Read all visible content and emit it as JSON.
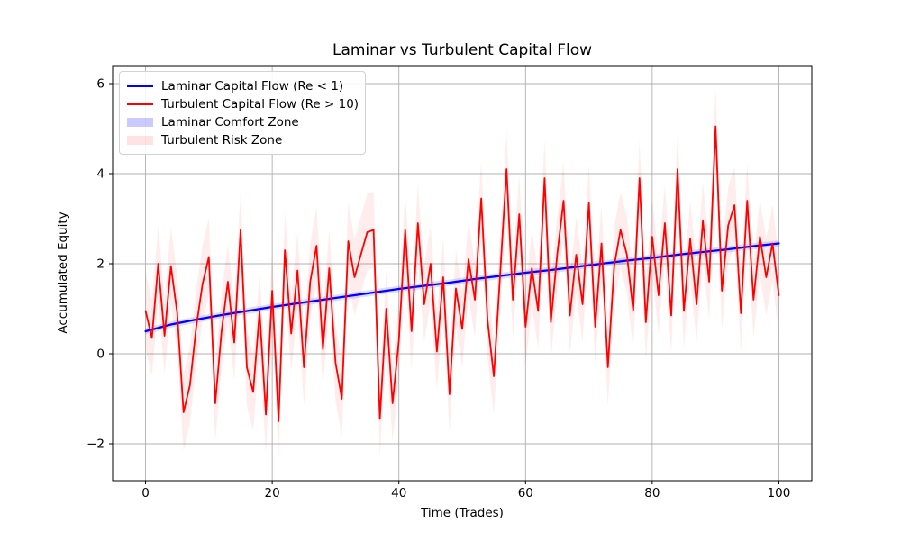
{
  "chart_data": {
    "type": "line",
    "title": "Laminar vs Turbulent Capital Flow",
    "xlabel": "Time (Trades)",
    "ylabel": "Accumulated Equity",
    "xlim": [
      -5.2,
      105.2
    ],
    "ylim": [
      -2.82,
      6.4
    ],
    "xticks": [
      0,
      20,
      40,
      60,
      80,
      100
    ],
    "x_tick_labels": [
      "0",
      "20",
      "40",
      "60",
      "80",
      "100"
    ],
    "yticks": [
      -2,
      0,
      2,
      4,
      6
    ],
    "y_tick_labels": [
      "−2",
      "0",
      "2",
      "4",
      "6"
    ],
    "grid": true,
    "grid_color": "#b0b0b0",
    "legend_position": "upper left",
    "series": [
      {
        "name": "Laminar Capital Flow (Re < 1)",
        "color": "#0000ff",
        "x_start": 0,
        "x_step": 4,
        "values": [
          0.5,
          0.65,
          0.76,
          0.86,
          0.95,
          1.04,
          1.12,
          1.2,
          1.28,
          1.36,
          1.44,
          1.51,
          1.58,
          1.66,
          1.73,
          1.8,
          1.86,
          1.93,
          2.0,
          2.07,
          2.13,
          2.2,
          2.26,
          2.32,
          2.39,
          2.45
        ],
        "band": {
          "label": "Laminar Comfort Zone",
          "halfwidth": 0.07,
          "color": "#0000ff",
          "opacity": 0.13
        }
      },
      {
        "name": "Turbulent Capital Flow (Re > 10)",
        "color": "#ff0000",
        "x_start": 0,
        "x_step": 1,
        "values": [
          0.95,
          0.35,
          2.0,
          0.4,
          1.95,
          0.9,
          -1.3,
          -0.7,
          0.6,
          1.55,
          2.15,
          -1.1,
          0.5,
          1.6,
          0.25,
          2.75,
          -0.3,
          -0.85,
          0.95,
          -1.35,
          1.4,
          -1.5,
          2.3,
          0.45,
          1.85,
          -0.3,
          1.6,
          2.4,
          0.1,
          1.9,
          -0.2,
          -1.0,
          2.5,
          1.7,
          2.2,
          2.7,
          2.75,
          -1.45,
          1.0,
          -1.1,
          0.3,
          2.75,
          0.5,
          2.9,
          1.1,
          2.0,
          0.05,
          1.7,
          -0.9,
          1.45,
          0.55,
          2.1,
          1.2,
          3.45,
          0.75,
          -0.5,
          1.8,
          4.1,
          1.2,
          3.1,
          0.6,
          1.9,
          0.95,
          3.9,
          0.7,
          2.2,
          3.4,
          0.85,
          2.2,
          1.1,
          3.35,
          0.6,
          2.45,
          -0.3,
          1.95,
          2.75,
          2.2,
          0.95,
          3.9,
          0.7,
          2.6,
          1.3,
          2.9,
          0.85,
          4.1,
          0.95,
          2.55,
          1.1,
          2.95,
          1.6,
          5.05,
          1.4,
          2.85,
          3.3,
          0.9,
          3.4,
          1.2,
          2.6,
          1.7,
          2.45,
          1.3
        ],
        "band": {
          "label": "Turbulent Risk Zone",
          "halfwidth": 0.85,
          "color": "#ff0000",
          "opacity": 0.07
        }
      }
    ]
  }
}
